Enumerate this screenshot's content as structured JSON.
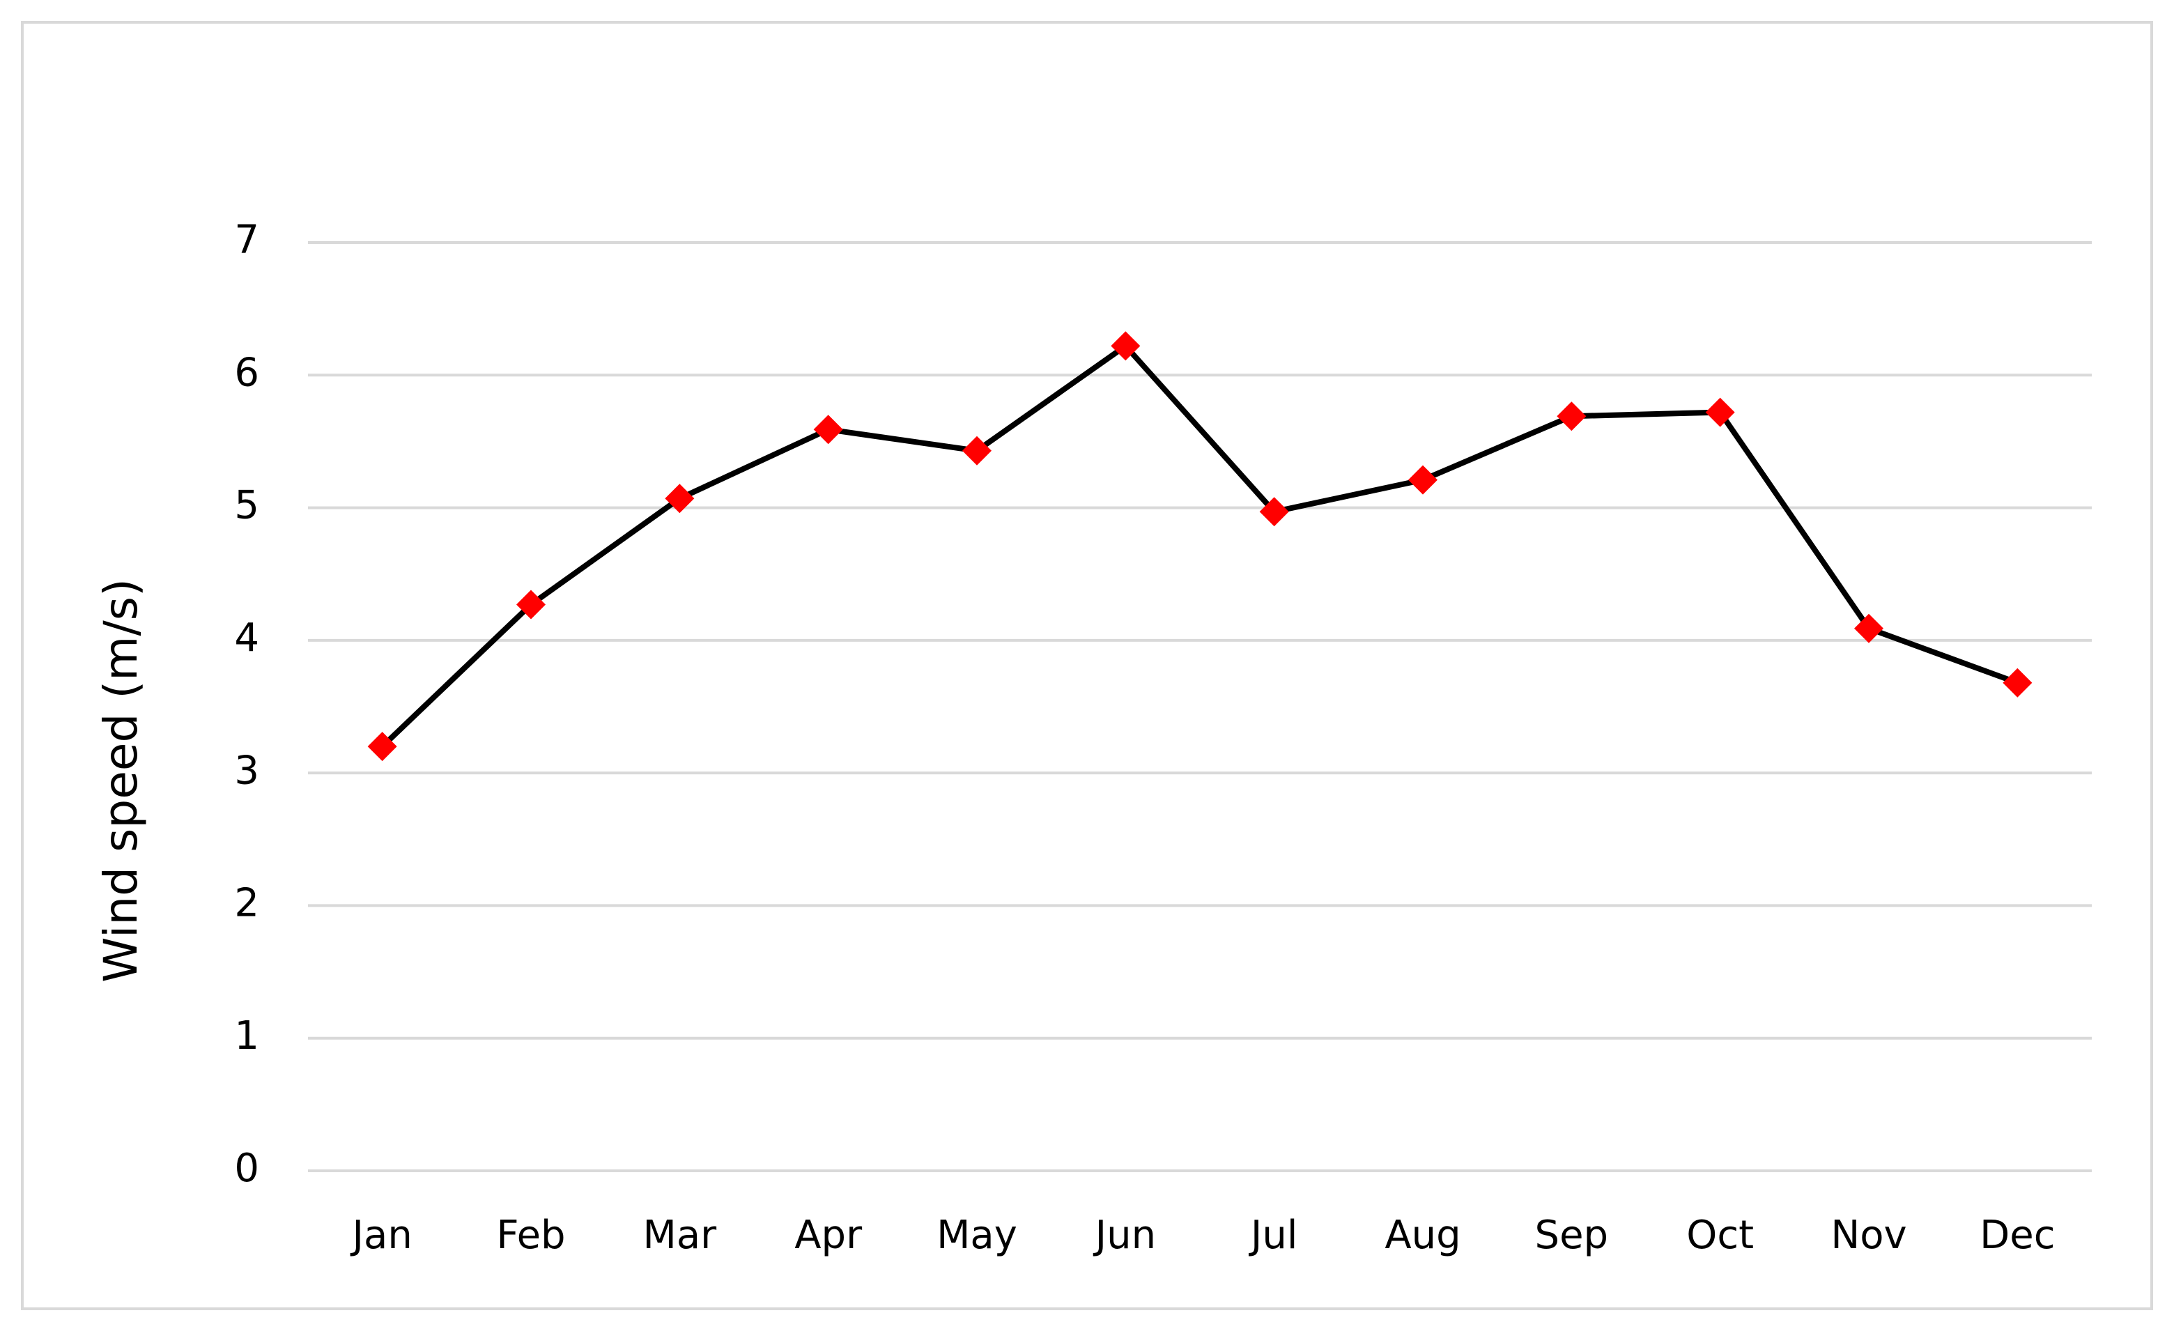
{
  "chart_data": {
    "type": "line",
    "y_label": "Wind speed (m/s)",
    "categories": [
      "Jan",
      "Feb",
      "Mar",
      "Apr",
      "May",
      "Jun",
      "Jul",
      "Aug",
      "Sep",
      "Oct",
      "Nov",
      "Dec"
    ],
    "series": [
      {
        "color": "#000000",
        "marker_color": "#ff0000",
        "values": [
          3.2,
          4.27,
          5.07,
          5.59,
          5.43,
          6.22,
          4.97,
          5.21,
          5.69,
          5.72,
          4.09,
          3.68
        ]
      }
    ],
    "ylim": [
      0,
      7
    ],
    "yticks": [
      0,
      1,
      2,
      3,
      4,
      5,
      6,
      7
    ],
    "grid": true
  }
}
